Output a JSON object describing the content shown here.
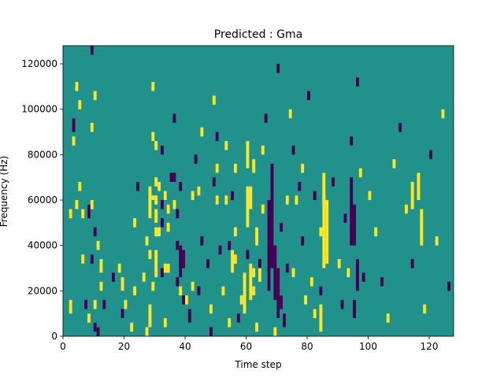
{
  "chart_data": {
    "type": "heatmap",
    "title": "Predicted : Gma",
    "xlabel": "Time step",
    "ylabel": "Frequency (Hz)",
    "xlim": [
      0,
      128
    ],
    "ylim": [
      0,
      128000
    ],
    "x_ticks": [
      0,
      20,
      40,
      60,
      80,
      100,
      120
    ],
    "x_tick_labels": [
      "0",
      "20",
      "40",
      "60",
      "80",
      "100",
      "120"
    ],
    "y_ticks": [
      0,
      20000,
      40000,
      60000,
      80000,
      100000,
      120000
    ],
    "y_tick_labels": [
      "0",
      "20000",
      "40000",
      "60000",
      "80000",
      "100000",
      "120000"
    ],
    "grid": false,
    "colormap": "viridis",
    "value_levels": [
      -1,
      0,
      1
    ],
    "colors": {
      "background": "#21918c",
      "low": "#440154",
      "high": "#fde725"
    },
    "cell_height_hz": 2000,
    "cells": [
      {
        "t": 2,
        "f0": 10000,
        "f1": 16000,
        "v": 1
      },
      {
        "t": 2,
        "f0": 52000,
        "f1": 56000,
        "v": 1
      },
      {
        "t": 3,
        "f0": 84000,
        "f1": 88000,
        "v": 1
      },
      {
        "t": 3,
        "f0": 90000,
        "f1": 96000,
        "v": -1
      },
      {
        "t": 4,
        "f0": 108000,
        "f1": 112000,
        "v": 1
      },
      {
        "t": 4,
        "f0": 56000,
        "f1": 60000,
        "v": 1
      },
      {
        "t": 5,
        "f0": 100000,
        "f1": 104000,
        "v": 1
      },
      {
        "t": 5,
        "f0": 64000,
        "f1": 68000,
        "v": 1
      },
      {
        "t": 6,
        "f0": 52000,
        "f1": 56000,
        "v": 1
      },
      {
        "t": 6,
        "f0": 32000,
        "f1": 36000,
        "v": 1
      },
      {
        "t": 7,
        "f0": 12000,
        "f1": 16000,
        "v": -1
      },
      {
        "t": 8,
        "f0": 52000,
        "f1": 58000,
        "v": -1
      },
      {
        "t": 8,
        "f0": 6000,
        "f1": 10000,
        "v": 1
      },
      {
        "t": 9,
        "f0": 124000,
        "f1": 128000,
        "v": -1
      },
      {
        "t": 9,
        "f0": 90000,
        "f1": 94000,
        "v": 1
      },
      {
        "t": 9,
        "f0": 56000,
        "f1": 60000,
        "v": 1
      },
      {
        "t": 9,
        "f0": 32000,
        "f1": 36000,
        "v": -1
      },
      {
        "t": 10,
        "f0": 104000,
        "f1": 108000,
        "v": 1
      },
      {
        "t": 10,
        "f0": 44000,
        "f1": 48000,
        "v": -1
      },
      {
        "t": 10,
        "f0": 12000,
        "f1": 16000,
        "v": 1
      },
      {
        "t": 10,
        "f0": 2000,
        "f1": 6000,
        "v": -1
      },
      {
        "t": 11,
        "f0": 38000,
        "f1": 42000,
        "v": 1
      },
      {
        "t": 11,
        "f0": 0,
        "f1": 4000,
        "v": -1
      },
      {
        "t": 12,
        "f0": 28000,
        "f1": 34000,
        "v": 1
      },
      {
        "t": 12,
        "f0": 20000,
        "f1": 24000,
        "v": 1
      },
      {
        "t": 13,
        "f0": 12000,
        "f1": 16000,
        "v": -1
      },
      {
        "t": 16,
        "f0": 24000,
        "f1": 28000,
        "v": -1
      },
      {
        "t": 18,
        "f0": 28000,
        "f1": 32000,
        "v": 1
      },
      {
        "t": 19,
        "f0": 20000,
        "f1": 26000,
        "v": 1
      },
      {
        "t": 19,
        "f0": 8000,
        "f1": 12000,
        "v": -1
      },
      {
        "t": 20,
        "f0": 12000,
        "f1": 16000,
        "v": 1
      },
      {
        "t": 22,
        "f0": 2000,
        "f1": 6000,
        "v": 1
      },
      {
        "t": 23,
        "f0": 48000,
        "f1": 52000,
        "v": 1
      },
      {
        "t": 23,
        "f0": 18000,
        "f1": 22000,
        "v": 1
      },
      {
        "t": 24,
        "f0": 64000,
        "f1": 68000,
        "v": -1
      },
      {
        "t": 26,
        "f0": 24000,
        "f1": 28000,
        "v": 1
      },
      {
        "t": 27,
        "f0": 40000,
        "f1": 44000,
        "v": 1
      },
      {
        "t": 27,
        "f0": 0,
        "f1": 4000,
        "v": 1
      },
      {
        "t": 28,
        "f0": 34000,
        "f1": 38000,
        "v": 1
      },
      {
        "t": 29,
        "f0": 108000,
        "f1": 112000,
        "v": 1
      },
      {
        "t": 29,
        "f0": 86000,
        "f1": 90000,
        "v": 1
      },
      {
        "t": 29,
        "f0": 60000,
        "f1": 62000,
        "v": 1
      },
      {
        "t": 29,
        "f0": 20000,
        "f1": 24000,
        "v": 1
      },
      {
        "t": 30,
        "f0": 82000,
        "f1": 86000,
        "v": 1
      },
      {
        "t": 30,
        "f0": 66000,
        "f1": 70000,
        "v": 1
      },
      {
        "t": 30,
        "f0": 58000,
        "f1": 62000,
        "v": 1
      },
      {
        "t": 30,
        "f0": 44000,
        "f1": 48000,
        "v": 1
      },
      {
        "t": 30,
        "f0": 36000,
        "f1": 38000,
        "v": 1
      },
      {
        "t": 31,
        "f0": 64000,
        "f1": 68000,
        "v": 1
      },
      {
        "t": 31,
        "f0": 44000,
        "f1": 48000,
        "v": 1
      },
      {
        "t": 32,
        "f0": 80000,
        "f1": 84000,
        "v": -1
      },
      {
        "t": 32,
        "f0": 56000,
        "f1": 60000,
        "v": -1
      },
      {
        "t": 32,
        "f0": 48000,
        "f1": 52000,
        "v": -1
      },
      {
        "t": 32,
        "f0": 26000,
        "f1": 30000,
        "v": -1
      },
      {
        "t": 33,
        "f0": 60000,
        "f1": 64000,
        "v": 1
      },
      {
        "t": 33,
        "f0": 28000,
        "f1": 32000,
        "v": 1
      },
      {
        "t": 33,
        "f0": 4000,
        "f1": 8000,
        "v": 1
      },
      {
        "t": 34,
        "f0": 54000,
        "f1": 58000,
        "v": 1
      },
      {
        "t": 34,
        "f0": 46000,
        "f1": 50000,
        "v": 1
      },
      {
        "t": 34,
        "f0": 28000,
        "f1": 32000,
        "v": 1
      },
      {
        "t": 35,
        "f0": 68000,
        "f1": 72000,
        "v": -1
      },
      {
        "t": 36,
        "f0": 94000,
        "f1": 98000,
        "v": -1
      },
      {
        "t": 36,
        "f0": 68000,
        "f1": 72000,
        "v": -1
      },
      {
        "t": 36,
        "f0": 56000,
        "f1": 60000,
        "v": 1
      },
      {
        "t": 37,
        "f0": 52000,
        "f1": 56000,
        "v": -1
      },
      {
        "t": 37,
        "f0": 38000,
        "f1": 42000,
        "v": -1
      },
      {
        "t": 37,
        "f0": 22000,
        "f1": 26000,
        "v": -1
      },
      {
        "t": 38,
        "f0": 64000,
        "f1": 68000,
        "v": -1
      },
      {
        "t": 38,
        "f0": 18000,
        "f1": 22000,
        "v": 1
      },
      {
        "t": 40,
        "f0": 14000,
        "f1": 18000,
        "v": 1
      },
      {
        "t": 41,
        "f0": 6000,
        "f1": 12000,
        "v": -1
      },
      {
        "t": 42,
        "f0": 60000,
        "f1": 64000,
        "v": 1
      },
      {
        "t": 42,
        "f0": 20000,
        "f1": 24000,
        "v": 1
      },
      {
        "t": 43,
        "f0": 76000,
        "f1": 80000,
        "v": -1
      },
      {
        "t": 44,
        "f0": 62000,
        "f1": 66000,
        "v": 1
      },
      {
        "t": 44,
        "f0": 18000,
        "f1": 22000,
        "v": -1
      },
      {
        "t": 45,
        "f0": 88000,
        "f1": 92000,
        "v": 1
      },
      {
        "t": 45,
        "f0": 40000,
        "f1": 44000,
        "v": -1
      },
      {
        "t": 47,
        "f0": 30000,
        "f1": 34000,
        "v": -1
      },
      {
        "t": 48,
        "f0": 10000,
        "f1": 14000,
        "v": 1
      },
      {
        "t": 48,
        "f0": 0,
        "f1": 4000,
        "v": -1
      },
      {
        "t": 49,
        "f0": 102000,
        "f1": 106000,
        "v": 1
      },
      {
        "t": 49,
        "f0": 66000,
        "f1": 70000,
        "v": -1
      },
      {
        "t": 50,
        "f0": 86000,
        "f1": 90000,
        "v": -1
      },
      {
        "t": 50,
        "f0": 72000,
        "f1": 76000,
        "v": 1
      },
      {
        "t": 50,
        "f0": 58000,
        "f1": 62000,
        "v": 1
      },
      {
        "t": 51,
        "f0": 36000,
        "f1": 40000,
        "v": -1
      },
      {
        "t": 52,
        "f0": 18000,
        "f1": 22000,
        "v": 1
      },
      {
        "t": 53,
        "f0": 82000,
        "f1": 86000,
        "v": 1
      },
      {
        "t": 53,
        "f0": 58000,
        "f1": 62000,
        "v": 1
      },
      {
        "t": 54,
        "f0": 38000,
        "f1": 42000,
        "v": -1
      },
      {
        "t": 54,
        "f0": 4000,
        "f1": 8000,
        "v": 1
      },
      {
        "t": 55,
        "f0": 60000,
        "f1": 64000,
        "v": -1
      },
      {
        "t": 56,
        "f0": 72000,
        "f1": 76000,
        "v": 1
      },
      {
        "t": 56,
        "f0": 44000,
        "f1": 48000,
        "v": 1
      },
      {
        "t": 57,
        "f0": 6000,
        "f1": 10000,
        "v": -1
      },
      {
        "t": 58,
        "f0": 14000,
        "f1": 18000,
        "v": 1
      },
      {
        "t": 60,
        "f0": 34000,
        "f1": 38000,
        "v": -1
      },
      {
        "t": 62,
        "f0": 18000,
        "f1": 22000,
        "v": 1
      },
      {
        "t": 63,
        "f0": 2000,
        "f1": 6000,
        "v": 1
      },
      {
        "t": 64,
        "f0": 30000,
        "f1": 34000,
        "v": -1
      },
      {
        "t": 65,
        "f0": 80000,
        "f1": 84000,
        "v": 1
      },
      {
        "t": 65,
        "f0": 54000,
        "f1": 58000,
        "v": 1
      },
      {
        "t": 66,
        "f0": 94000,
        "f1": 98000,
        "v": -1
      },
      {
        "t": 69,
        "f0": 0,
        "f1": 4000,
        "v": 1
      },
      {
        "t": 70,
        "f0": 116000,
        "f1": 120000,
        "v": -1
      },
      {
        "t": 71,
        "f0": 46000,
        "f1": 50000,
        "v": -1
      },
      {
        "t": 73,
        "f0": 58000,
        "f1": 62000,
        "v": 1
      },
      {
        "t": 74,
        "f0": 96000,
        "f1": 100000,
        "v": 1
      },
      {
        "t": 75,
        "f0": 80000,
        "f1": 84000,
        "v": -1
      },
      {
        "t": 75,
        "f0": 26000,
        "f1": 30000,
        "v": 1
      },
      {
        "t": 76,
        "f0": 58000,
        "f1": 62000,
        "v": 1
      },
      {
        "t": 77,
        "f0": 64000,
        "f1": 68000,
        "v": -1
      },
      {
        "t": 78,
        "f0": 72000,
        "f1": 76000,
        "v": 1
      },
      {
        "t": 78,
        "f0": 40000,
        "f1": 44000,
        "v": -1
      },
      {
        "t": 79,
        "f0": 14000,
        "f1": 18000,
        "v": 1
      },
      {
        "t": 80,
        "f0": 104000,
        "f1": 108000,
        "v": -1
      },
      {
        "t": 81,
        "f0": 22000,
        "f1": 26000,
        "v": 1
      },
      {
        "t": 82,
        "f0": 8000,
        "f1": 12000,
        "v": 1
      },
      {
        "t": 82,
        "f0": 60000,
        "f1": 64000,
        "v": -1
      },
      {
        "t": 84,
        "f0": 44000,
        "f1": 48000,
        "v": 1
      },
      {
        "t": 84,
        "f0": 18000,
        "f1": 22000,
        "v": -1
      },
      {
        "t": 85,
        "f0": 58000,
        "f1": 62000,
        "v": 1
      },
      {
        "t": 86,
        "f0": 32000,
        "f1": 36000,
        "v": 1
      },
      {
        "t": 88,
        "f0": 66000,
        "f1": 70000,
        "v": -1
      },
      {
        "t": 90,
        "f0": 30000,
        "f1": 34000,
        "v": 1
      },
      {
        "t": 91,
        "f0": 12000,
        "f1": 16000,
        "v": -1
      },
      {
        "t": 92,
        "f0": 50000,
        "f1": 54000,
        "v": -1
      },
      {
        "t": 93,
        "f0": 26000,
        "f1": 30000,
        "v": 1
      },
      {
        "t": 94,
        "f0": 84000,
        "f1": 88000,
        "v": -1
      },
      {
        "t": 96,
        "f0": 110000,
        "f1": 114000,
        "v": -1
      },
      {
        "t": 97,
        "f0": 70000,
        "f1": 74000,
        "v": 1
      },
      {
        "t": 98,
        "f0": 24000,
        "f1": 28000,
        "v": -1
      },
      {
        "t": 100,
        "f0": 60000,
        "f1": 64000,
        "v": 1
      },
      {
        "t": 102,
        "f0": 44000,
        "f1": 48000,
        "v": 1
      },
      {
        "t": 104,
        "f0": 22000,
        "f1": 26000,
        "v": -1
      },
      {
        "t": 106,
        "f0": 6000,
        "f1": 10000,
        "v": 1
      },
      {
        "t": 108,
        "f0": 74000,
        "f1": 78000,
        "v": 1
      },
      {
        "t": 110,
        "f0": 90000,
        "f1": 94000,
        "v": -1
      },
      {
        "t": 112,
        "f0": 54000,
        "f1": 58000,
        "v": 1
      },
      {
        "t": 114,
        "f0": 30000,
        "f1": 34000,
        "v": -1
      },
      {
        "t": 118,
        "f0": 10000,
        "f1": 14000,
        "v": 1
      },
      {
        "t": 120,
        "f0": 78000,
        "f1": 82000,
        "v": -1
      },
      {
        "t": 122,
        "f0": 40000,
        "f1": 44000,
        "v": 1
      },
      {
        "t": 124,
        "f0": 96000,
        "f1": 100000,
        "v": 1
      },
      {
        "t": 126,
        "f0": 20000,
        "f1": 24000,
        "v": -1
      }
    ],
    "bands": [
      {
        "t0": 28,
        "t1": 29,
        "f0": 4000,
        "f1": 14000,
        "v": 1
      },
      {
        "t0": 28,
        "t1": 29,
        "f0": 52000,
        "f1": 66000,
        "v": 1
      },
      {
        "t0": 30,
        "t1": 31,
        "f0": 26000,
        "f1": 36000,
        "v": 1
      },
      {
        "t0": 30,
        "t1": 31,
        "f0": 50000,
        "f1": 56000,
        "v": 1
      },
      {
        "t0": 38,
        "t1": 39,
        "f0": 26000,
        "f1": 40000,
        "v": -1
      },
      {
        "t0": 39,
        "t1": 40,
        "f0": 30000,
        "f1": 38000,
        "v": -1
      },
      {
        "t0": 39,
        "t1": 40,
        "f0": 14000,
        "f1": 18000,
        "v": -1
      },
      {
        "t0": 55,
        "t1": 56,
        "f0": 28000,
        "f1": 38000,
        "v": 1
      },
      {
        "t0": 56,
        "t1": 57,
        "f0": 32000,
        "f1": 36000,
        "v": 1
      },
      {
        "t0": 59,
        "t1": 60,
        "f0": 10000,
        "f1": 28000,
        "v": 1
      },
      {
        "t0": 60,
        "t1": 61,
        "f0": 74000,
        "f1": 86000,
        "v": 1
      },
      {
        "t0": 60,
        "t1": 61,
        "f0": 48000,
        "f1": 66000,
        "v": 1
      },
      {
        "t0": 61,
        "t1": 62,
        "f0": 56000,
        "f1": 66000,
        "v": 1
      },
      {
        "t0": 61,
        "t1": 62,
        "f0": 16000,
        "f1": 32000,
        "v": 1
      },
      {
        "t0": 62,
        "t1": 63,
        "f0": 26000,
        "f1": 30000,
        "v": 1
      },
      {
        "t0": 62,
        "t1": 63,
        "f0": 72000,
        "f1": 78000,
        "v": 1
      },
      {
        "t0": 63,
        "t1": 64,
        "f0": 40000,
        "f1": 48000,
        "v": 1
      },
      {
        "t0": 64,
        "t1": 65,
        "f0": 24000,
        "f1": 32000,
        "v": 1
      },
      {
        "t0": 67,
        "t1": 68,
        "f0": 20000,
        "f1": 60000,
        "v": -1
      },
      {
        "t0": 68,
        "t1": 69,
        "f0": 30000,
        "f1": 76000,
        "v": -1
      },
      {
        "t0": 69,
        "t1": 70,
        "f0": 16000,
        "f1": 40000,
        "v": -1
      },
      {
        "t0": 70,
        "t1": 71,
        "f0": 8000,
        "f1": 30000,
        "v": -1
      },
      {
        "t0": 71,
        "t1": 72,
        "f0": 12000,
        "f1": 18000,
        "v": -1
      },
      {
        "t0": 72,
        "t1": 73,
        "f0": 4000,
        "f1": 10000,
        "v": -1
      },
      {
        "t0": 73,
        "t1": 74,
        "f0": 28000,
        "f1": 32000,
        "v": -1
      },
      {
        "t0": 84,
        "t1": 85,
        "f0": 2000,
        "f1": 14000,
        "v": 1
      },
      {
        "t0": 85,
        "t1": 86,
        "f0": 30000,
        "f1": 72000,
        "v": 1
      },
      {
        "t0": 86,
        "t1": 87,
        "f0": 36000,
        "f1": 60000,
        "v": 1
      },
      {
        "t0": 94,
        "t1": 95,
        "f0": 40000,
        "f1": 70000,
        "v": -1
      },
      {
        "t0": 95,
        "t1": 96,
        "f0": 40000,
        "f1": 58000,
        "v": -1
      },
      {
        "t0": 95,
        "t1": 96,
        "f0": 8000,
        "f1": 16000,
        "v": -1
      },
      {
        "t0": 96,
        "t1": 97,
        "f0": 20000,
        "f1": 34000,
        "v": -1
      },
      {
        "t0": 114,
        "t1": 115,
        "f0": 56000,
        "f1": 68000,
        "v": 1
      },
      {
        "t0": 116,
        "t1": 117,
        "f0": 60000,
        "f1": 72000,
        "v": 1
      },
      {
        "t0": 117,
        "t1": 118,
        "f0": 40000,
        "f1": 56000,
        "v": 1
      }
    ]
  }
}
